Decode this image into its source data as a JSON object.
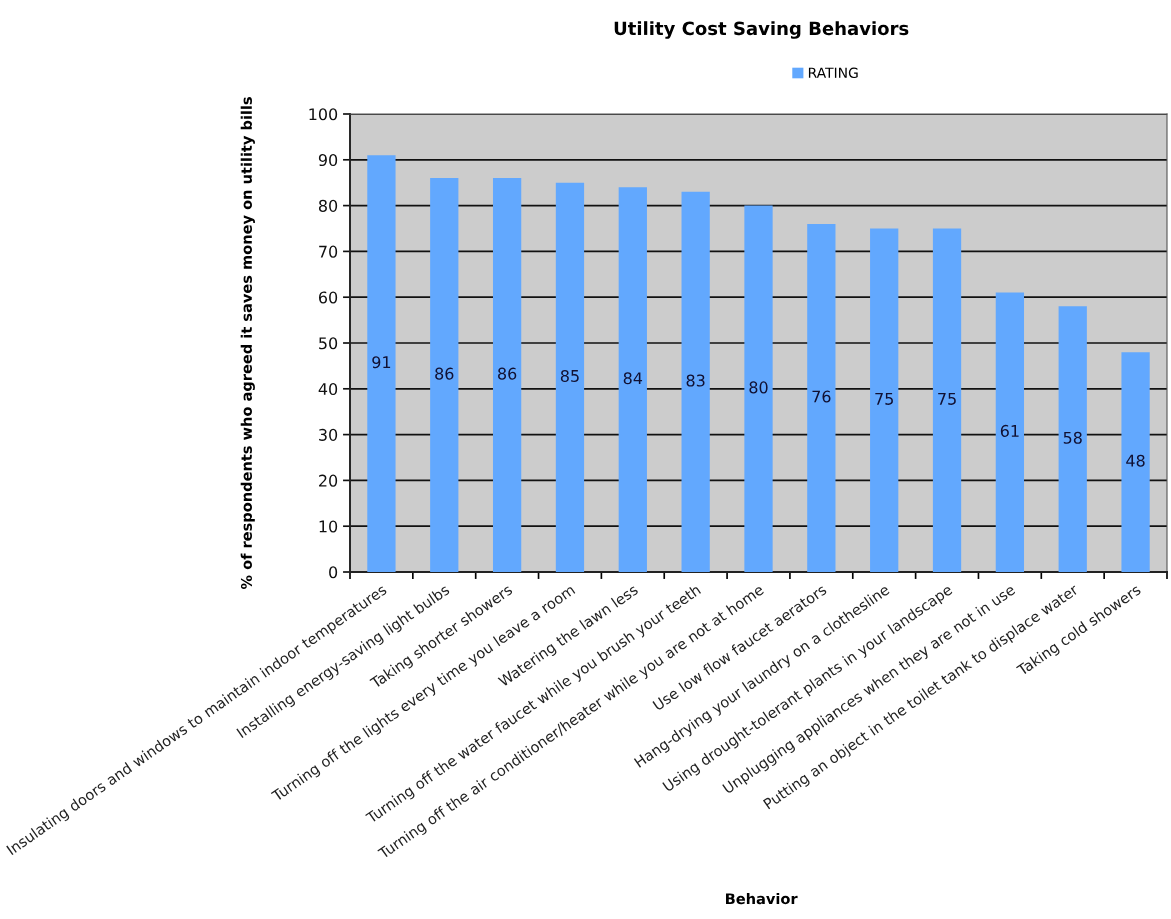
{
  "chart_data": {
    "type": "bar",
    "title": "Utility Cost Saving Behaviors",
    "xlabel": "Behavior",
    "ylabel": "% of respondents who agreed it saves money on utility bills",
    "categories": [
      "Insulating doors and windows to maintain indoor temperatures",
      "Installing energy-saving light bulbs",
      "Taking shorter showers",
      "Turning off the lights every time you leave a room",
      "Watering the lawn less",
      "Turning off the water faucet while you brush your teeth",
      "Turning off the air conditioner/heater while you are not at home",
      "Use low flow faucet aerators",
      "Hang-drying your laundry on a clothesline",
      "Using drought-tolerant plants in your landscape",
      "Unplugging appliances when they are not in use",
      "Putting an object in the toilet tank to displace water",
      "Taking cold showers"
    ],
    "series": [
      {
        "name": "RATING",
        "color": "#62a8fe",
        "values": [
          91,
          86,
          86,
          85,
          84,
          83,
          80,
          76,
          75,
          75,
          61,
          58,
          48
        ]
      }
    ],
    "ylim": [
      0,
      100
    ],
    "yticks": [
      0,
      10,
      20,
      30,
      40,
      50,
      60,
      70,
      80,
      90,
      100
    ],
    "grid": "y",
    "legend": "top",
    "data_labels": true
  }
}
